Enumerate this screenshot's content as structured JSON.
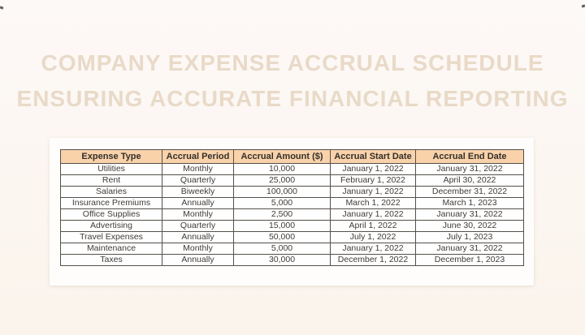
{
  "page": {
    "title_line1": "COMPANY EXPENSE ACCRUAL SCHEDULE",
    "title_line2": "ENSURING ACCURATE FINANCIAL REPORTING"
  },
  "colors": {
    "page_background_top": "#fdf9f7",
    "page_background_bottom": "#faf4ec",
    "card_background": "#fefdfc",
    "title_text": "#e9dac8",
    "table_header_background": "#f9d2aa",
    "table_header_text": "#332f2a",
    "table_cell_text": "#403c38",
    "table_border": "#55504a"
  },
  "table": {
    "columns": [
      "Expense Type",
      "Accrual Period",
      "Accrual Amount ($)",
      "Accrual Start Date",
      "Accrual End Date"
    ],
    "rows": [
      [
        "Utilities",
        "Monthly",
        "10,000",
        "January 1, 2022",
        "January 31, 2022"
      ],
      [
        "Rent",
        "Quarterly",
        "25,000",
        "February 1, 2022",
        "April 30, 2022"
      ],
      [
        "Salaries",
        "Biweekly",
        "100,000",
        "January 1, 2022",
        "December 31, 2022"
      ],
      [
        "Insurance Premiums",
        "Annually",
        "5,000",
        "March 1, 2022",
        "March 1, 2023"
      ],
      [
        "Office Supplies",
        "Monthly",
        "2,500",
        "January 1, 2022",
        "January 31, 2022"
      ],
      [
        "Advertising",
        "Quarterly",
        "15,000",
        "April 1, 2022",
        "June 30, 2022"
      ],
      [
        "Travel Expenses",
        "Annually",
        "50,000",
        "July 1, 2022",
        "July 1, 2023"
      ],
      [
        "Maintenance",
        "Monthly",
        "5,000",
        "January 1, 2022",
        "January 31, 2022"
      ],
      [
        "Taxes",
        "Annually",
        "30,000",
        "December 1, 2022",
        "December 1, 2023"
      ]
    ]
  }
}
